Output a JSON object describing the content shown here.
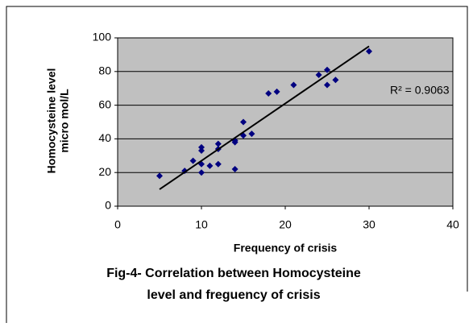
{
  "chart_data": {
    "type": "scatter",
    "title": [
      "Fig-4- Correlation between Homocysteine",
      "level and freguency of crisis"
    ],
    "x_label": "Frequency of crisis",
    "y_label": [
      "Homocysteine level",
      "micro mol/L"
    ],
    "annotation": "R² = 0.9063",
    "color": "#000080",
    "plot_background": "#c0c0c0",
    "grid": true,
    "xlim": [
      0,
      40
    ],
    "xticks": [
      0,
      10,
      20,
      30,
      40
    ],
    "ylim": [
      0,
      100
    ],
    "yticks": [
      0,
      20,
      40,
      60,
      80,
      100
    ],
    "x": [
      5,
      8,
      9,
      10,
      10,
      10,
      10,
      11,
      12,
      12,
      12,
      14,
      14,
      14,
      15,
      15,
      16,
      18,
      19,
      21,
      24,
      25,
      25,
      26,
      30
    ],
    "values": [
      18,
      21,
      27,
      35,
      33,
      25,
      20,
      24,
      37,
      34,
      25,
      38,
      39,
      22,
      50,
      42,
      43,
      67,
      68,
      72,
      78,
      81,
      72,
      75,
      92
    ],
    "trendline": {
      "x": [
        5,
        30
      ],
      "values": [
        10,
        95
      ]
    }
  }
}
